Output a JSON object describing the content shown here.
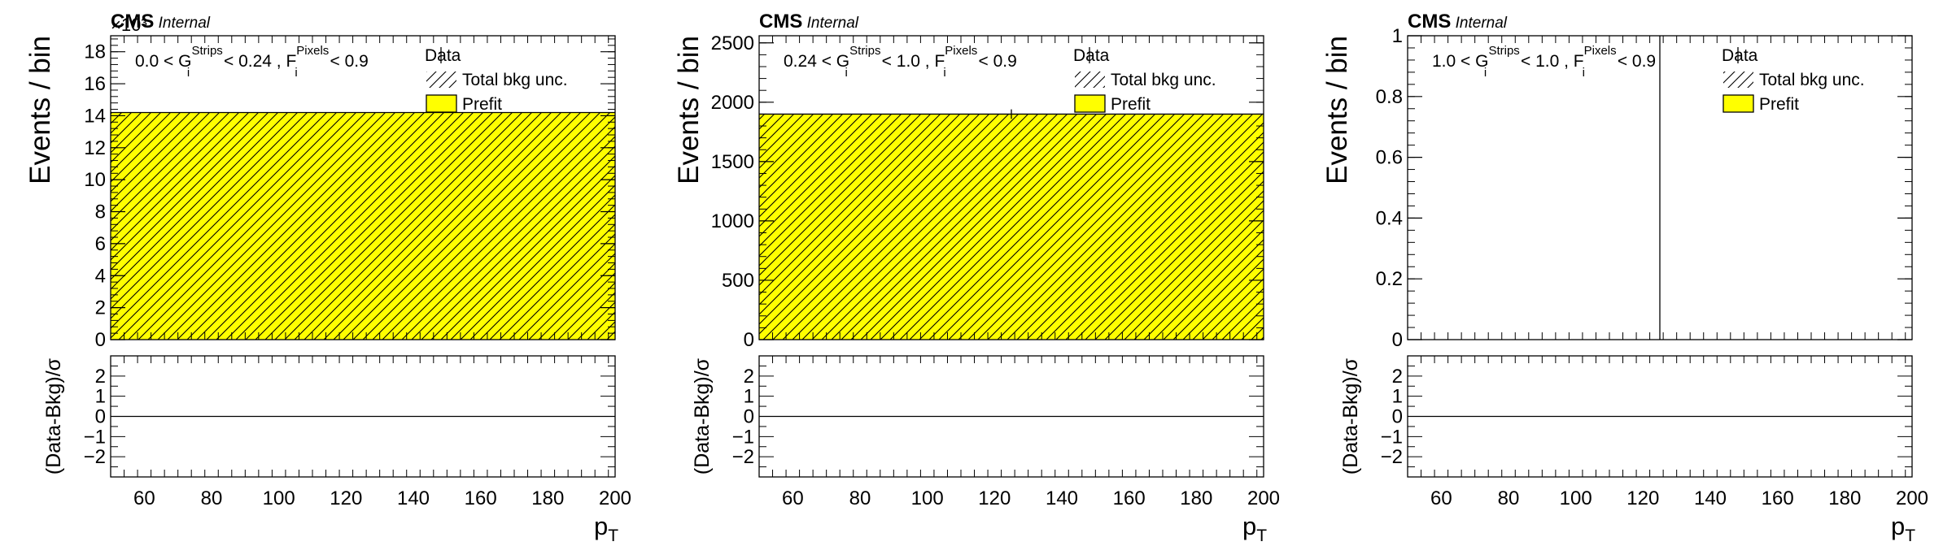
{
  "chart_data": [
    {
      "type": "bar",
      "experiment": "CMS",
      "status": "Internal",
      "exponent_label": "×10³",
      "category_label": {
        "pre": "0.0 < G",
        "g_sup": "Strips",
        "g_sub": "i",
        "mid": " < 0.24 , F",
        "f_sup": "Pixels",
        "f_sub": "i",
        "post": " < 0.9"
      },
      "xlabel": {
        "main": "p",
        "sub": "T"
      },
      "ylabel": "Events / bin",
      "ratio_ylabel": "(Data-Bkg)/σ",
      "xlim": [
        50,
        200
      ],
      "ylim": [
        0,
        19
      ],
      "yticks": [
        0,
        2,
        4,
        6,
        8,
        10,
        12,
        14,
        16,
        18
      ],
      "xticks": [
        60,
        80,
        100,
        120,
        140,
        160,
        180,
        200
      ],
      "ratio_ylim": [
        -3,
        3
      ],
      "ratio_yticks": [
        -2,
        -1,
        0,
        1,
        2
      ],
      "bins": [
        {
          "x_low": 50,
          "x_high": 200,
          "prefit": 14.2,
          "total_bkg_unc": 14.2
        }
      ],
      "data_points": [],
      "legend": {
        "placement": "top-right",
        "entries": [
          "Data",
          "Total bkg unc.",
          "Prefit"
        ]
      },
      "colors": {
        "prefit_fill": "#ffff00",
        "hatch": "#000000"
      }
    },
    {
      "type": "bar",
      "experiment": "CMS",
      "status": "Internal",
      "exponent_label": "",
      "category_label": {
        "pre": "0.24 < G",
        "g_sup": "Strips",
        "g_sub": "i",
        "mid": " < 1.0 , F",
        "f_sup": "Pixels",
        "f_sub": "i",
        "post": " < 0.9"
      },
      "xlabel": {
        "main": "p",
        "sub": "T"
      },
      "ylabel": "Events / bin",
      "ratio_ylabel": "(Data-Bkg)/σ",
      "xlim": [
        50,
        200
      ],
      "ylim": [
        0,
        2560
      ],
      "yticks": [
        0,
        500,
        1000,
        1500,
        2000,
        2500
      ],
      "xticks": [
        60,
        80,
        100,
        120,
        140,
        160,
        180,
        200
      ],
      "ratio_ylim": [
        -3,
        3
      ],
      "ratio_yticks": [
        -2,
        -1,
        0,
        1,
        2
      ],
      "bins": [
        {
          "x_low": 50,
          "x_high": 200,
          "prefit": 1900,
          "total_bkg_unc": 1900
        }
      ],
      "data_points": [
        {
          "x": 125,
          "y": 1900,
          "yerr": 40
        }
      ],
      "legend": {
        "placement": "top-right",
        "entries": [
          "Data",
          "Total bkg unc.",
          "Prefit"
        ]
      },
      "colors": {
        "prefit_fill": "#ffff00",
        "hatch": "#000000"
      }
    },
    {
      "type": "bar",
      "experiment": "CMS",
      "status": "Internal",
      "exponent_label": "",
      "category_label": {
        "pre": "1.0 < G",
        "g_sup": "Strips",
        "g_sub": "i",
        "mid": " < 1.0 , F",
        "f_sup": "Pixels",
        "f_sub": "i",
        "post": " < 0.9"
      },
      "xlabel": {
        "main": "p",
        "sub": "T"
      },
      "ylabel": "Events / bin",
      "ratio_ylabel": "(Data-Bkg)/σ",
      "xlim": [
        50,
        200
      ],
      "ylim": [
        0,
        1
      ],
      "yticks": [
        0,
        0.2,
        0.4,
        0.6,
        0.8,
        1
      ],
      "xticks": [
        60,
        80,
        100,
        120,
        140,
        160,
        180,
        200
      ],
      "ratio_ylim": [
        -3,
        3
      ],
      "ratio_yticks": [
        -2,
        -1,
        0,
        1,
        2
      ],
      "bins": [],
      "data_points": [
        {
          "x": 125,
          "y": 0,
          "yerr_up": 1.0
        }
      ],
      "legend": {
        "placement": "top-right",
        "entries": [
          "Data",
          "Total bkg unc.",
          "Prefit"
        ]
      },
      "colors": {
        "prefit_fill": "#ffff00",
        "hatch": "#000000"
      }
    }
  ]
}
